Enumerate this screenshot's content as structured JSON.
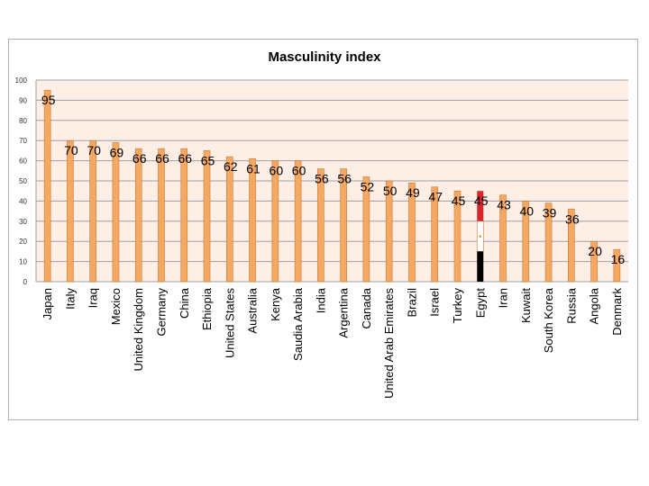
{
  "chart_data": {
    "type": "bar",
    "title": "Masculinity index",
    "xlabel": "",
    "ylabel": "",
    "ylim": [
      0,
      100
    ],
    "yticks": [
      0,
      10,
      20,
      30,
      40,
      50,
      60,
      70,
      80,
      90,
      100
    ],
    "grid": true,
    "legend": "none",
    "categories": [
      "Japan",
      "Italy",
      "Iraq",
      "Mexico",
      "United Kingdom",
      "Germany",
      "China",
      "Ethiopia",
      "United States",
      "Australia",
      "Kenya",
      "Saudia Arabia",
      "India",
      "Argentina",
      "Canada",
      "United Arab Emirates",
      "Brazil",
      "Israel",
      "Turkey",
      "Egypt",
      "Iran",
      "Kuwait",
      "South Korea",
      "Russia",
      "Angola",
      "Denmark"
    ],
    "values": [
      95,
      70,
      70,
      69,
      66,
      66,
      66,
      65,
      62,
      61,
      60,
      60,
      56,
      56,
      52,
      50,
      49,
      47,
      45,
      45,
      43,
      40,
      39,
      36,
      20,
      16
    ],
    "data_labels": [
      "95",
      "70",
      "70",
      "69",
      "66",
      "66",
      "66",
      "65",
      "62",
      "61",
      "60",
      "60",
      "56",
      "56",
      "52",
      "50",
      "49",
      "47",
      "45",
      "45",
      "43",
      "40",
      "39",
      "36",
      "20",
      "16"
    ],
    "highlight": "Egypt",
    "colors": {
      "bar_fill": "#f5a862",
      "bar_stroke": "#c97a35",
      "plot_bg": "#fdeee6",
      "grid": "#a0a0a0",
      "highlight_label": "#5a4fa0",
      "flag_red": "#d9262b",
      "flag_white": "#ffffff",
      "flag_black": "#000000"
    }
  }
}
